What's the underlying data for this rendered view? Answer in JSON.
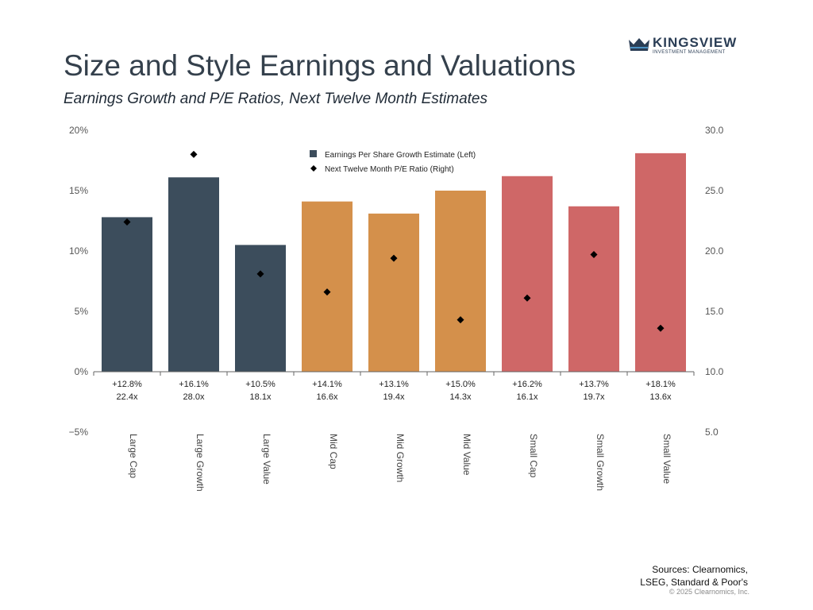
{
  "header": {
    "title": "Size and Style Earnings and Valuations",
    "subtitle": "Earnings Growth and P/E Ratios, Next Twelve Month Estimates"
  },
  "logo": {
    "name": "KINGSVIEW",
    "tagline": "INVESTMENT MANAGEMENT",
    "color": "#2a3d55"
  },
  "footer": {
    "sources_line1": "Sources: Clearnomics,",
    "sources_line2": "LSEG, Standard & Poor's",
    "copyright": "© 2025 Clearnomics, Inc."
  },
  "chart_data": {
    "type": "bar",
    "categories": [
      "Large Cap",
      "Large Growth",
      "Large Value",
      "Mid Cap",
      "Mid Growth",
      "Mid Value",
      "Small Cap",
      "Small Growth",
      "Small Value"
    ],
    "series": [
      {
        "name": "Earnings Per Share Growth Estimate (Left)",
        "type": "bar",
        "axis": "left",
        "values": [
          12.8,
          16.1,
          10.5,
          14.1,
          13.1,
          15.0,
          16.2,
          13.7,
          18.1
        ],
        "colors": [
          "#3c4d5c",
          "#3c4d5c",
          "#3c4d5c",
          "#d4904b",
          "#d4904b",
          "#d4904b",
          "#cf6767",
          "#cf6767",
          "#cf6767"
        ]
      },
      {
        "name": "Next Twelve Month P/E Ratio (Right)",
        "type": "scatter",
        "axis": "right",
        "values": [
          22.4,
          28.0,
          18.1,
          16.6,
          19.4,
          14.3,
          16.1,
          19.7,
          13.6
        ],
        "color": "#000000"
      }
    ],
    "value_labels_top": [
      "+12.8%",
      "+16.1%",
      "+10.5%",
      "+14.1%",
      "+13.1%",
      "+15.0%",
      "+16.2%",
      "+13.7%",
      "+18.1%"
    ],
    "value_labels_bottom": [
      "22.4x",
      "28.0x",
      "18.1x",
      "16.6x",
      "19.4x",
      "14.3x",
      "16.1x",
      "19.7x",
      "13.6x"
    ],
    "left_axis": {
      "ylim": [
        -5,
        20
      ],
      "ticks": [
        20,
        15,
        10,
        5,
        0,
        -5
      ],
      "tick_labels": [
        "20%",
        "15%",
        "10%",
        "5%",
        "0%",
        "−5%"
      ]
    },
    "right_axis": {
      "ylim": [
        5,
        30
      ],
      "ticks": [
        30,
        25,
        20,
        15,
        10,
        5
      ],
      "tick_labels": [
        "30.0",
        "25.0",
        "20.0",
        "15.0",
        "10.0",
        "5.0"
      ]
    },
    "legend_placement": "top-center",
    "grid": false
  }
}
